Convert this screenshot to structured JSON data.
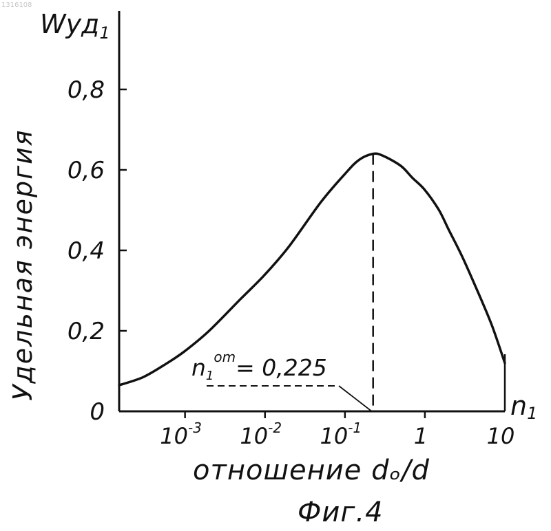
{
  "chart_data": {
    "type": "line",
    "x_scale": "log",
    "xlim": [
      0.00015,
      10
    ],
    "ylim": [
      0,
      0.8
    ],
    "y_ticks": [
      {
        "value": 0,
        "label": "0"
      },
      {
        "value": 0.2,
        "label": "0,2"
      },
      {
        "value": 0.4,
        "label": "0,4"
      },
      {
        "value": 0.6,
        "label": "0,6"
      },
      {
        "value": 0.8,
        "label": "0,8"
      }
    ],
    "x_ticks": [
      {
        "value": 0.001,
        "base": "10",
        "exp": "-3"
      },
      {
        "value": 0.01,
        "base": "10",
        "exp": "-2"
      },
      {
        "value": 0.1,
        "base": "10",
        "exp": "-1"
      },
      {
        "value": 1,
        "base": "1",
        "exp": ""
      },
      {
        "value": 10,
        "base": "10",
        "exp": ""
      }
    ],
    "y_unit_label": {
      "main": "Wуд",
      "sub": "1"
    },
    "ylabel": "Удельная энергия",
    "x_unit_label": {
      "main": "n",
      "sub": "1"
    },
    "xlabel": "отношение dₒ/d",
    "annotation": {
      "main": "n",
      "sub": "1",
      "sup": "om",
      "rest": "= 0,225"
    },
    "peak": {
      "x": 0.225,
      "y": 0.64
    },
    "series": [
      {
        "x": [
          0.00015,
          0.0003,
          0.0006,
          0.001,
          0.002,
          0.005,
          0.01,
          0.02,
          0.05,
          0.1,
          0.15,
          0.225,
          0.3,
          0.5,
          0.7,
          1,
          1.5,
          2,
          3,
          5,
          7,
          10
        ],
        "y": [
          0.065,
          0.085,
          0.12,
          0.15,
          0.2,
          0.28,
          0.34,
          0.41,
          0.52,
          0.59,
          0.625,
          0.64,
          0.635,
          0.61,
          0.58,
          0.55,
          0.5,
          0.45,
          0.38,
          0.28,
          0.21,
          0.12
        ]
      }
    ]
  },
  "caption": "Фиг.4",
  "corner_stamp": "1316108"
}
